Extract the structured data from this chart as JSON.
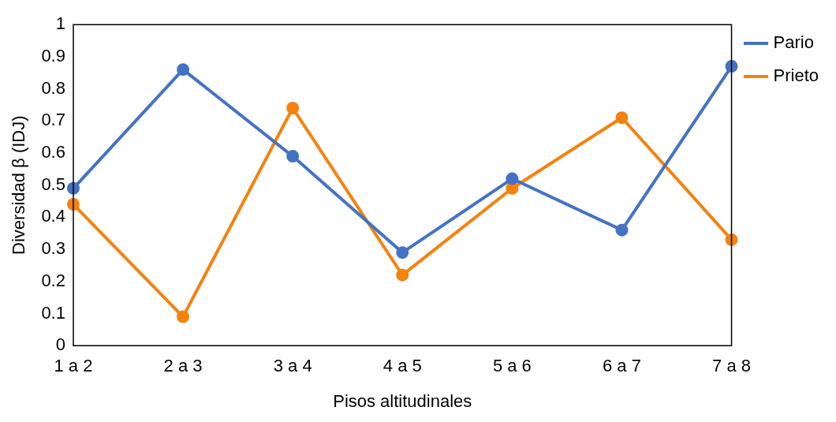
{
  "chart_data": {
    "type": "line",
    "xlabel": "Pisos altitudinales",
    "ylabel": "Diversidad β (IDJ)",
    "categories": [
      "1 a 2",
      "2 a 3",
      "3 a 4",
      "4 a 5",
      "5 a 6",
      "6 a 7",
      "7 a 8"
    ],
    "series": [
      {
        "name": "Pario",
        "color": "#4472c4",
        "values": [
          0.49,
          0.86,
          0.59,
          0.29,
          0.52,
          0.36,
          0.87
        ]
      },
      {
        "name": "Prieto",
        "color": "#f5820d",
        "values": [
          0.44,
          0.09,
          0.74,
          0.22,
          0.49,
          0.71,
          0.33
        ]
      }
    ],
    "ylim": [
      0,
      1
    ],
    "yticks": [
      0,
      0.1,
      0.2,
      0.3,
      0.4,
      0.5,
      0.6,
      0.7,
      0.8,
      0.9,
      1
    ],
    "grid": false,
    "legend": "right",
    "marker": "circle",
    "line_style": "solid"
  }
}
